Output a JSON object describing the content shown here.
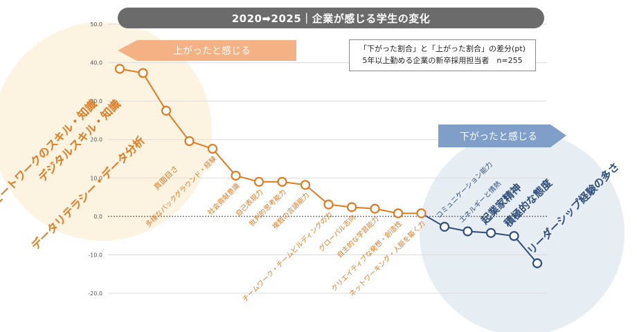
{
  "title": "2020➡2025｜企業が感じる学生の変化",
  "note": {
    "line1": "「下がった割合」と「上がった割合」の差分(pt)",
    "line2": "5年以上勤める企業の新卒採用担当者　n=255"
  },
  "arrows": {
    "up_label": "上がったと感じる",
    "down_label": "下がったと感じる"
  },
  "colors": {
    "up": "#e07b20",
    "down": "#2f4f7a",
    "up_bg": "#fdf3e1",
    "down_bg": "#e6edf3",
    "up_arrow": "#f4b183",
    "down_arrow": "#7f9fc9",
    "title_bg": "#6b6b6b"
  },
  "chart_data": {
    "type": "line",
    "ylim": [
      -20,
      50
    ],
    "yticks": [
      "50.0",
      "40.0",
      "30.0",
      "20.0",
      "10.0",
      "0.0",
      "-10.0",
      "-20.0"
    ],
    "grid": true,
    "categories": [
      "リモートワークのスキル・知識",
      "デジタルスキル・知識",
      "データリテラシー・データ分析",
      "真面目さ",
      "多様なバックグラウンド・経験",
      "社会貢献意識",
      "自己表現力",
      "批判的思考能力",
      "複数の言語能力",
      "チームワーク・チームビルディングの力",
      "グローバル志向",
      "自主的な学習能力",
      "クリエイティブな発想・創造性",
      "ネットワーキング・人脈を築く力",
      "コミュニケーション能力",
      "エネルギーと情熱",
      "起業家精神",
      "積極的な態度",
      "リーダーシップ経験の多さ"
    ],
    "values": [
      38.4,
      37.3,
      27.5,
      19.6,
      17.6,
      10.6,
      9.0,
      9.0,
      8.2,
      3.1,
      2.4,
      2.0,
      0.8,
      0.8,
      -2.7,
      -3.9,
      -4.3,
      -5.1,
      -12.2
    ]
  }
}
